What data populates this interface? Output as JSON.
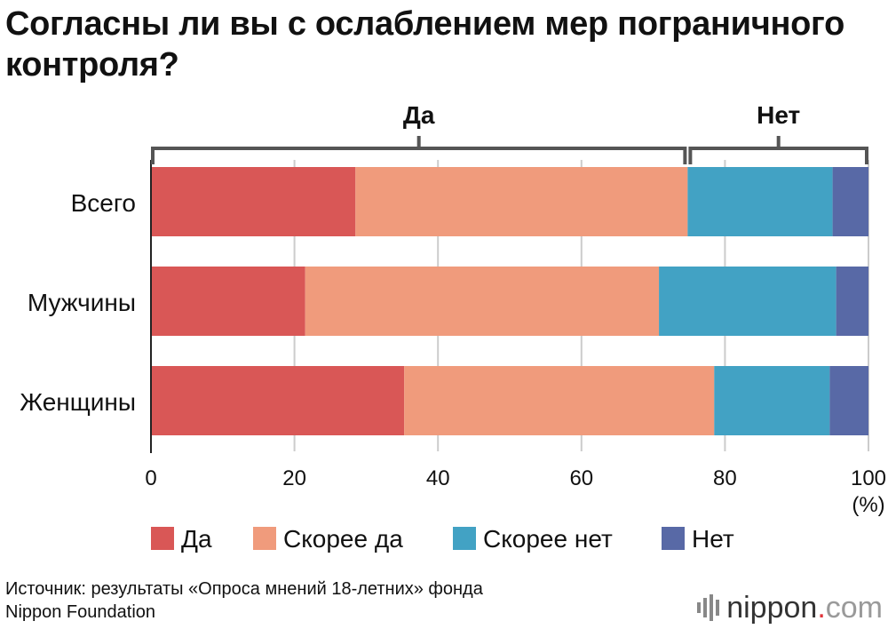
{
  "title": "Согласны ли вы с ослаблением мер пограничного контроля?",
  "chart_data": {
    "type": "bar",
    "orientation": "horizontal",
    "stacked": true,
    "title": "Согласны ли вы с ослаблением мер пограничного контроля?",
    "categories": [
      "Всего",
      "Мужчины",
      "Женщины"
    ],
    "series": [
      {
        "name": "Да",
        "color": "#d95756",
        "values": [
          28.5,
          21.5,
          35.3
        ]
      },
      {
        "name": "Скорее да",
        "color": "#f09b7c",
        "values": [
          46.3,
          49.3,
          43.2
        ]
      },
      {
        "name": "Скорее нет",
        "color": "#42a2c4",
        "values": [
          20.2,
          24.7,
          16.1
        ]
      },
      {
        "name": "Нет",
        "color": "#5869a6",
        "values": [
          5.0,
          4.5,
          5.4
        ]
      }
    ],
    "xlim": [
      0,
      100
    ],
    "xticks": [
      0,
      20,
      40,
      60,
      80,
      100
    ],
    "xticklabels": [
      "0",
      "20",
      "40",
      "60",
      "80",
      "100"
    ],
    "xunit": "(%)",
    "grid": true,
    "groups": [
      {
        "label": "Да",
        "from": 0,
        "to": 74.8
      },
      {
        "label": "Нет",
        "from": 74.8,
        "to": 100
      }
    ],
    "legend": [
      "Да",
      "Скорее да",
      "Скорее нет",
      "Нет"
    ],
    "legend_position": "bottom"
  },
  "source": {
    "line1": "Источник: результаты «Опроса мнений 18-летних» фонда",
    "line2": "Nippon Foundation"
  },
  "logo": {
    "name": "nippon",
    "dot": ".",
    "tld": "com"
  }
}
